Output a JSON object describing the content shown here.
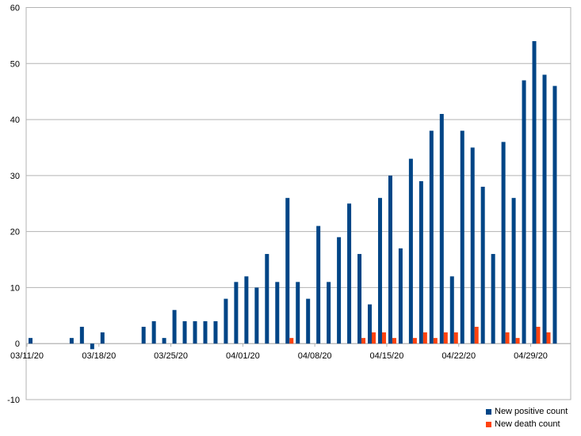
{
  "chart_data": {
    "type": "bar",
    "title": "",
    "xlabel": "",
    "ylabel": "",
    "ylim": [
      -10,
      60
    ],
    "yticks": [
      -10,
      0,
      10,
      20,
      30,
      40,
      50,
      60
    ],
    "grid": true,
    "legend_position": "bottom-right",
    "x": [
      "03/11/20",
      "03/12/20",
      "03/13/20",
      "03/14/20",
      "03/15/20",
      "03/16/20",
      "03/17/20",
      "03/18/20",
      "03/19/20",
      "03/20/20",
      "03/21/20",
      "03/22/20",
      "03/23/20",
      "03/24/20",
      "03/25/20",
      "03/26/20",
      "03/27/20",
      "03/28/20",
      "03/29/20",
      "03/30/20",
      "03/31/20",
      "04/01/20",
      "04/02/20",
      "04/03/20",
      "04/04/20",
      "04/05/20",
      "04/06/20",
      "04/07/20",
      "04/08/20",
      "04/09/20",
      "04/10/20",
      "04/11/20",
      "04/12/20",
      "04/13/20",
      "04/14/20",
      "04/15/20",
      "04/16/20",
      "04/17/20",
      "04/18/20",
      "04/19/20",
      "04/20/20",
      "04/21/20",
      "04/22/20",
      "04/23/20",
      "04/24/20",
      "04/25/20",
      "04/26/20",
      "04/27/20",
      "04/28/20",
      "04/29/20",
      "04/30/20",
      "05/01/20",
      "05/02/20",
      "05/03/20"
    ],
    "xtick_labels": [
      "03/11/20",
      "03/18/20",
      "03/25/20",
      "04/01/20",
      "04/08/20",
      "04/15/20",
      "04/22/20",
      "04/29/20"
    ],
    "series": [
      {
        "name": "New positive count",
        "color": "#004586",
        "values": [
          1,
          0,
          0,
          0,
          1,
          3,
          -1,
          2,
          0,
          0,
          0,
          3,
          4,
          1,
          6,
          4,
          4,
          4,
          4,
          8,
          11,
          12,
          10,
          16,
          11,
          26,
          11,
          8,
          21,
          11,
          19,
          25,
          16,
          7,
          26,
          30,
          17,
          33,
          29,
          38,
          41,
          12,
          38,
          35,
          28,
          16,
          36,
          26,
          47,
          54,
          48,
          46,
          0,
          0
        ]
      },
      {
        "name": "New death count",
        "color": "#ff420e",
        "values": [
          0,
          0,
          0,
          0,
          0,
          0,
          0,
          0,
          0,
          0,
          0,
          0,
          0,
          0,
          0,
          0,
          0,
          0,
          0,
          0,
          0,
          0,
          0,
          0,
          0,
          1,
          0,
          0,
          0,
          0,
          0,
          0,
          1,
          2,
          2,
          1,
          0,
          1,
          2,
          1,
          2,
          2,
          0,
          3,
          0,
          0,
          2,
          1,
          0,
          3,
          2,
          0,
          0,
          0
        ]
      }
    ]
  }
}
